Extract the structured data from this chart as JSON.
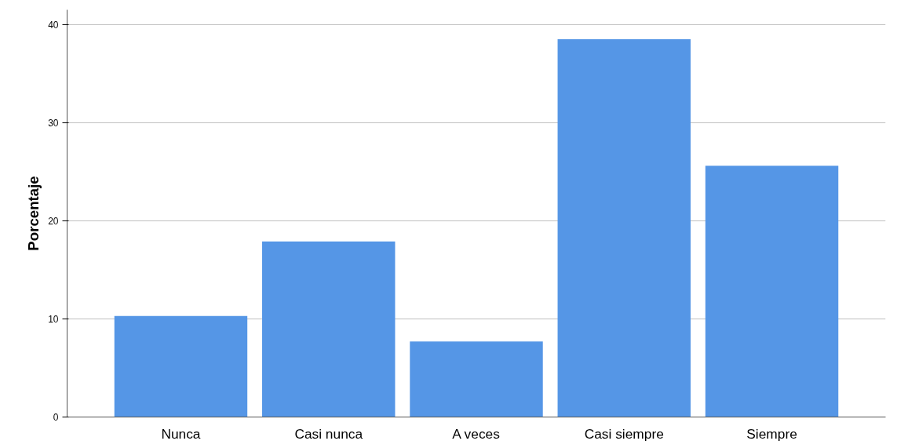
{
  "chart_data": {
    "type": "bar",
    "ylabel": "Porcentaje",
    "categories": [
      "Nunca",
      "Casi nunca",
      "A veces",
      "Casi siempre",
      "Siempre"
    ],
    "values": [
      10.3,
      17.9,
      7.7,
      38.5,
      25.6
    ],
    "color": "#5596e6",
    "ylim": [
      0,
      41.5
    ],
    "yticks": [
      0,
      10,
      20,
      30,
      40
    ],
    "grid": "y"
  }
}
